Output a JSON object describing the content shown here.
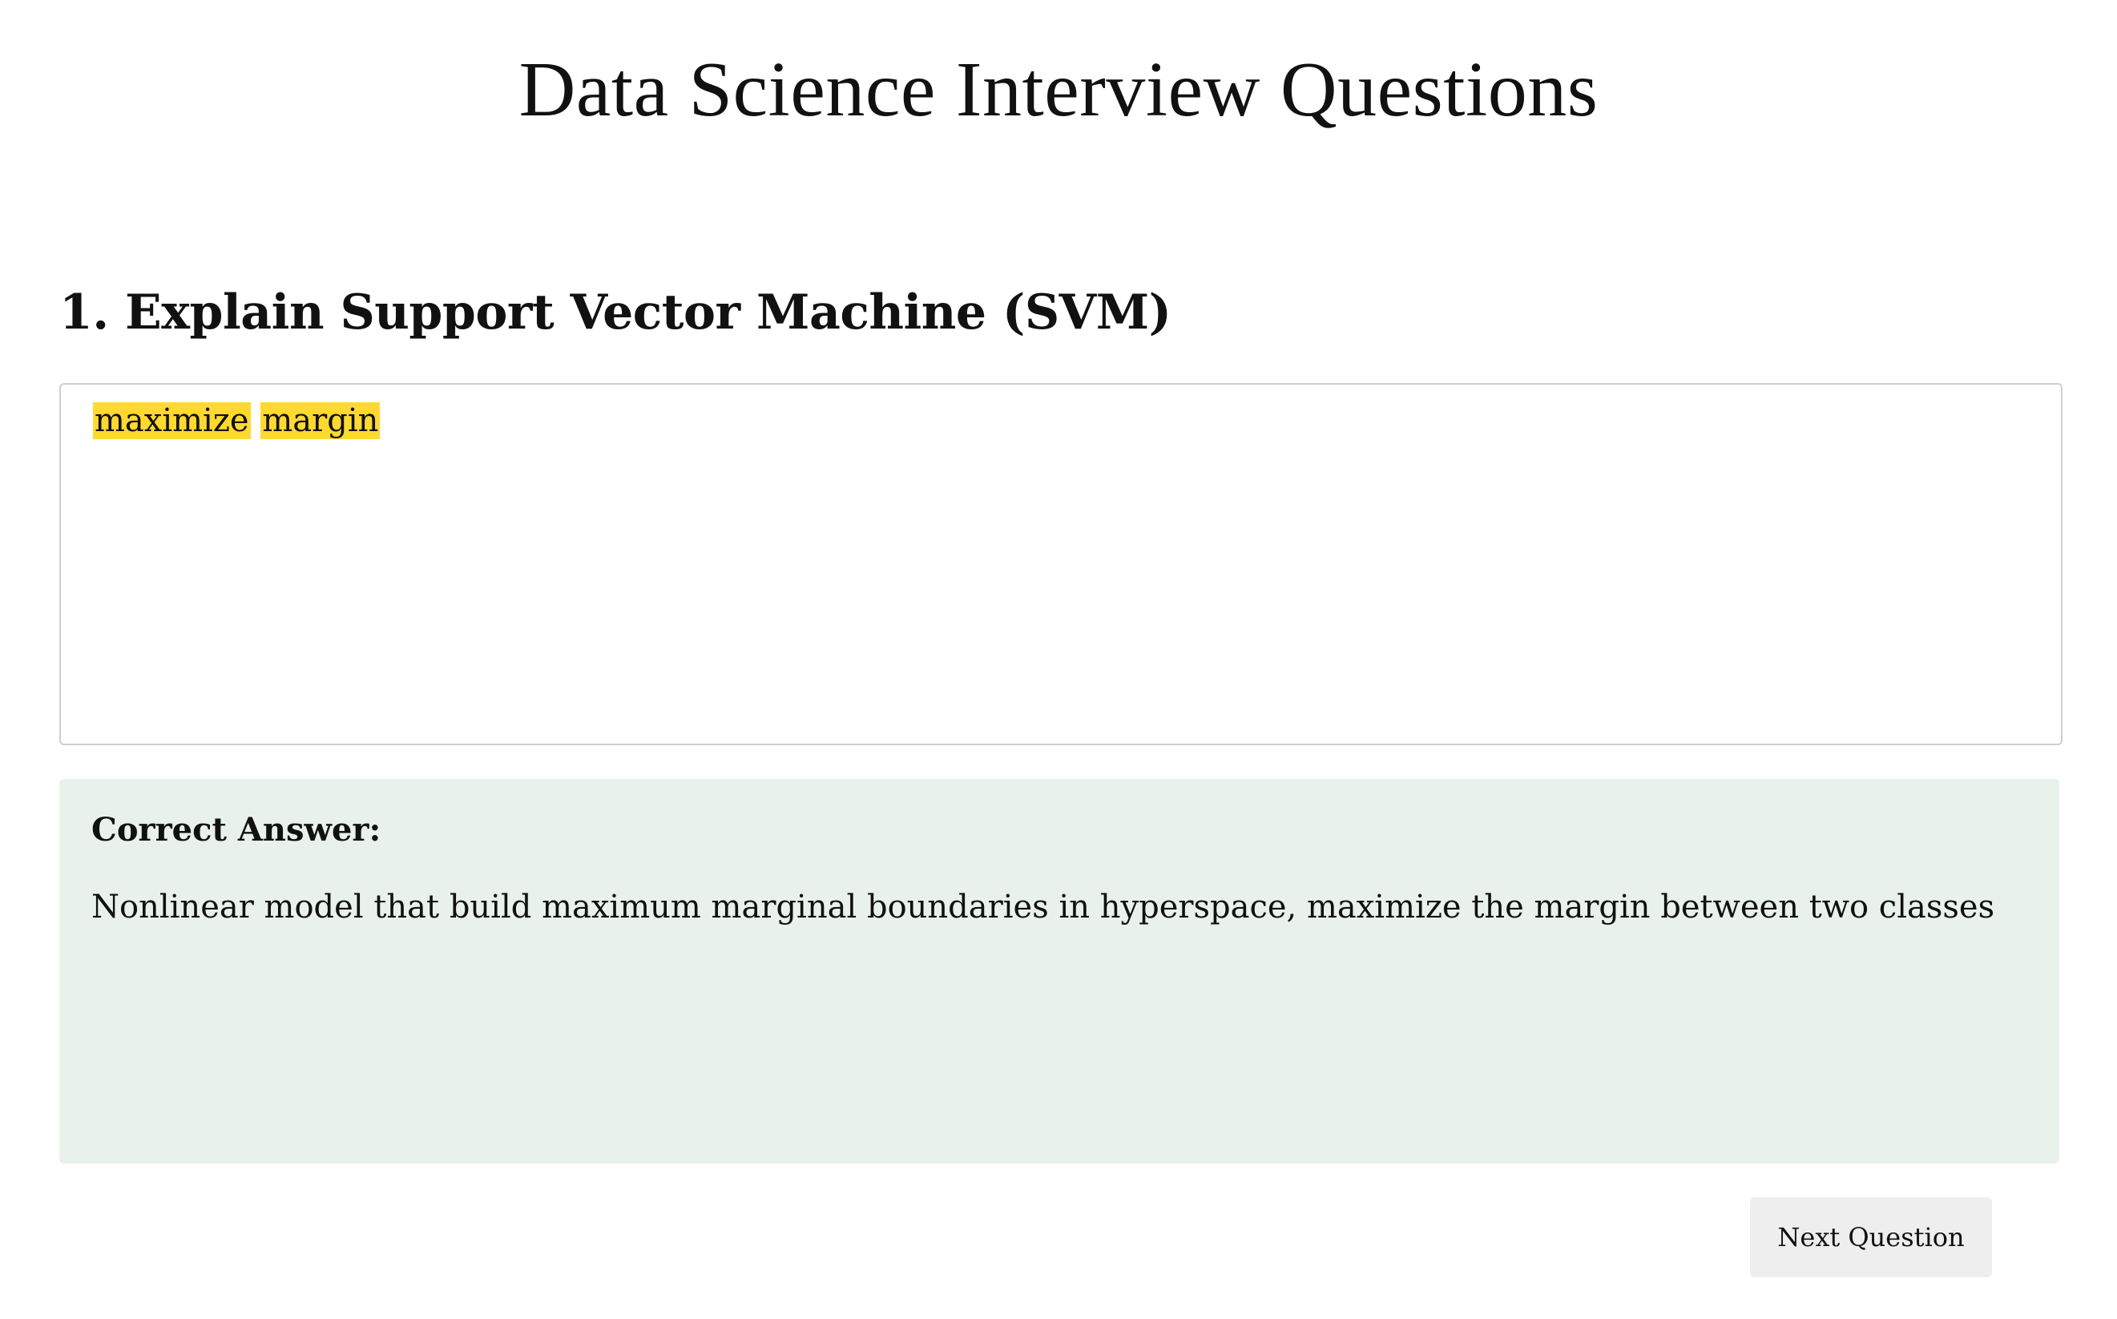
{
  "page": {
    "title": "Data Science Interview Questions"
  },
  "question": {
    "title": "1. Explain Support Vector Machine (SVM)",
    "answer_words": [
      "maximize",
      "margin"
    ]
  },
  "correct_answer": {
    "label": "Correct Answer:",
    "text": "Nonlinear model that build maximum marginal boundaries in hyperspace, maximize the margin between two classes"
  },
  "controls": {
    "next_label": "Next Question"
  },
  "colors": {
    "highlight": "#ffd92f",
    "correct_bg": "#e8f2ea",
    "button_bg": "#eeeeee"
  }
}
